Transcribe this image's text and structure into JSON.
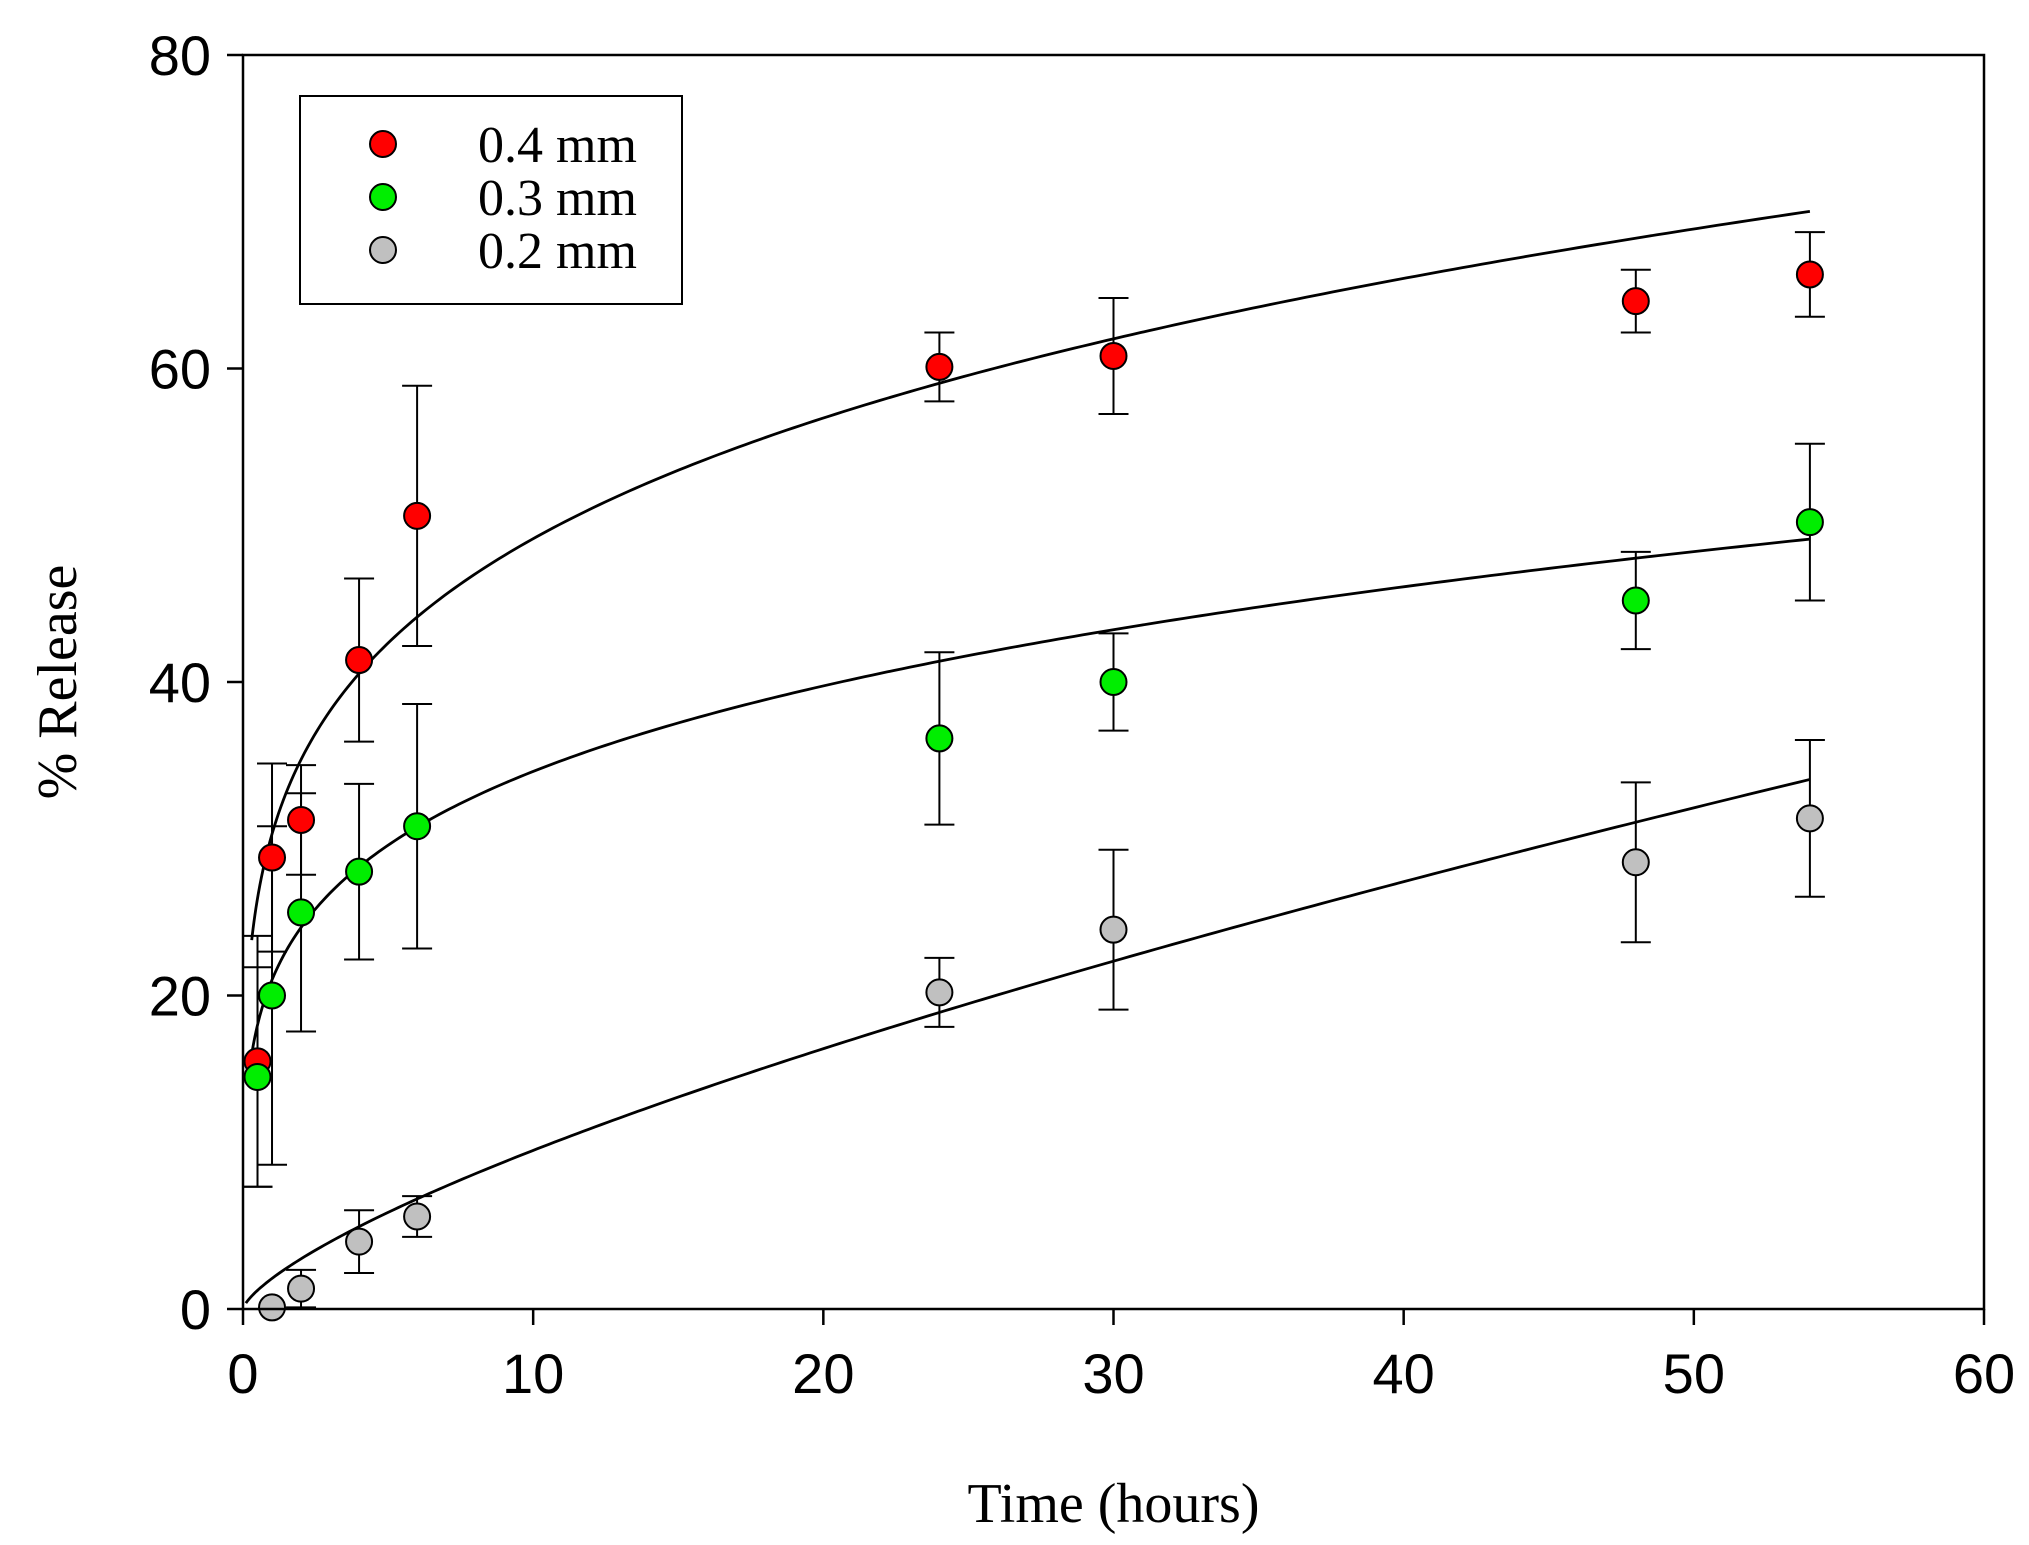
{
  "chart_data": {
    "type": "scatter",
    "title": "",
    "xlabel": "Time (hours)",
    "ylabel": "% Release",
    "xlim": [
      0,
      60
    ],
    "ylim": [
      0,
      80
    ],
    "xticks": [
      0,
      10,
      20,
      30,
      40,
      50,
      60
    ],
    "yticks": [
      0,
      20,
      40,
      60,
      80
    ],
    "xtick_labels": [
      "0",
      "10",
      "20",
      "30",
      "40",
      "50",
      "60"
    ],
    "ytick_labels": [
      "0",
      "20",
      "40",
      "60",
      "80"
    ],
    "grid": false,
    "legend_position": "top-left",
    "series": [
      {
        "name": "0.4 mm",
        "color": "#ff0000",
        "x": [
          0.5,
          1,
          2,
          4,
          6,
          24,
          30,
          48,
          54
        ],
        "y": [
          15.8,
          28.8,
          31.2,
          41.4,
          50.6,
          60.1,
          60.8,
          64.3,
          66.0
        ],
        "err": [
          8.0,
          6.0,
          3.5,
          5.2,
          8.3,
          2.2,
          3.7,
          2.0,
          2.7
        ]
      },
      {
        "name": "0.3 mm",
        "color": "#00ee00",
        "x": [
          0.5,
          1,
          2,
          4,
          6,
          24,
          30,
          48,
          54
        ],
        "y": [
          14.8,
          20.0,
          25.3,
          27.9,
          30.8,
          36.4,
          40.0,
          45.2,
          50.2
        ],
        "err": [
          7.0,
          10.8,
          7.6,
          5.6,
          7.8,
          5.5,
          3.1,
          3.1,
          5.0
        ]
      },
      {
        "name": "0.2 mm",
        "color": "#c0c0c0",
        "x": [
          1,
          2,
          4,
          6,
          24,
          30,
          48,
          54
        ],
        "y": [
          0.1,
          1.3,
          4.3,
          5.9,
          20.2,
          24.2,
          28.5,
          31.3
        ],
        "err": [
          0.0,
          1.2,
          2.0,
          1.3,
          2.2,
          5.1,
          5.1,
          5.0
        ]
      }
    ],
    "fit_curves": [
      {
        "series": "0.4 mm",
        "model": "power",
        "a": 30.3,
        "b": 0.21,
        "x_range": [
          0.3,
          54
        ]
      },
      {
        "series": "0.3 mm",
        "model": "power",
        "a": 21.0,
        "b": 0.213,
        "x_range": [
          0.3,
          54
        ]
      },
      {
        "series": "0.2 mm",
        "model": "power",
        "a": 1.95,
        "b": 0.715,
        "x_range": [
          0.1,
          54
        ]
      }
    ]
  }
}
